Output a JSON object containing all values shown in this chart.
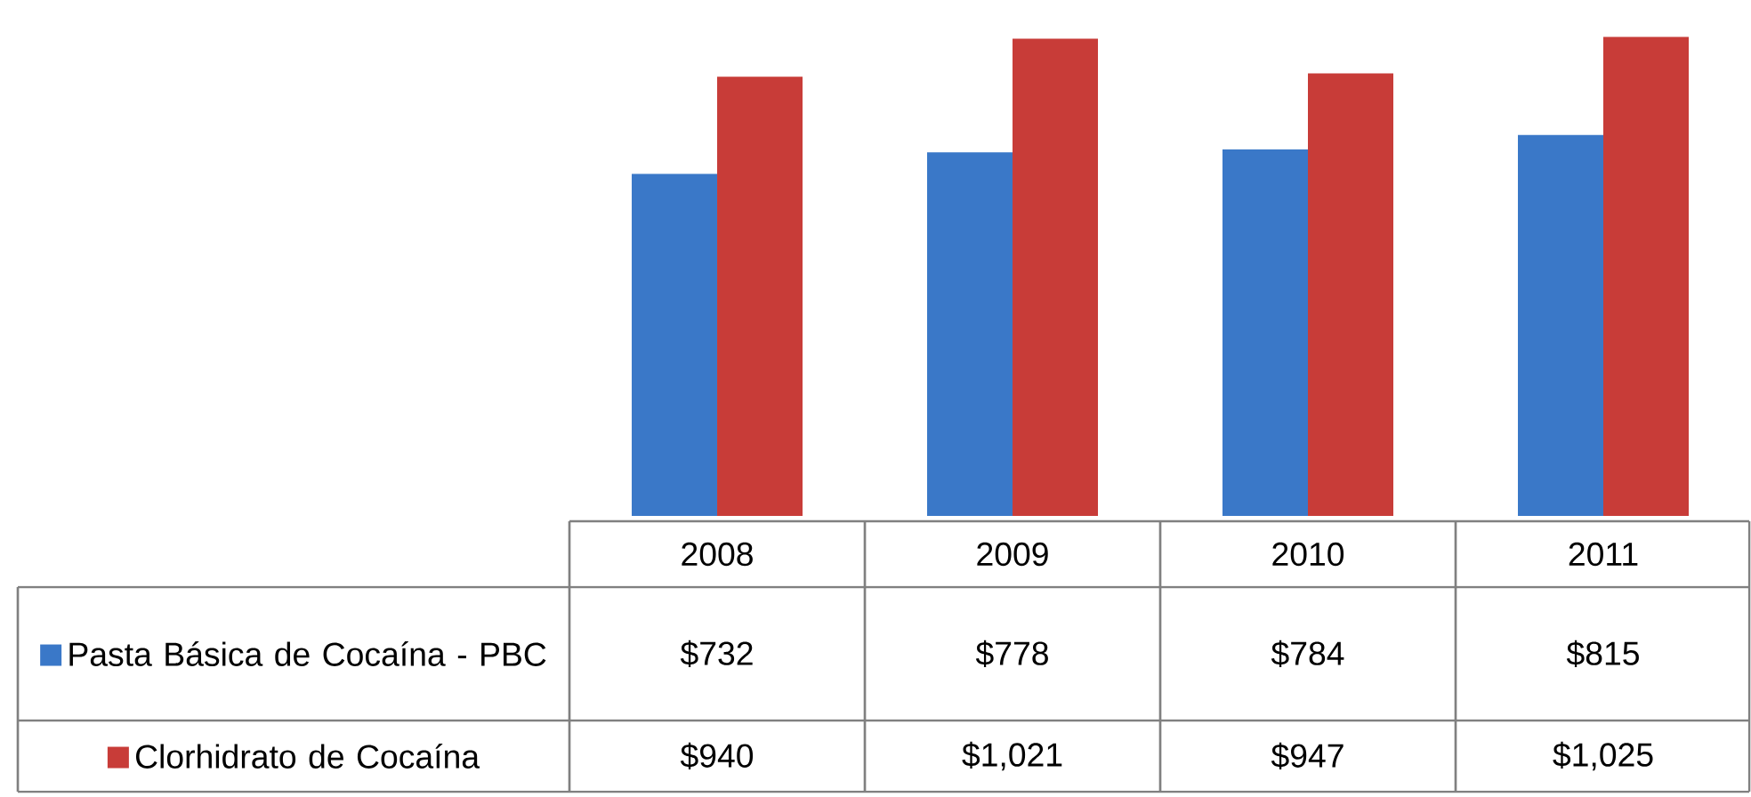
{
  "chart_data": {
    "type": "bar",
    "categories": [
      "2008",
      "2009",
      "2010",
      "2011"
    ],
    "series": [
      {
        "name": "Pasta Básica de Cocaína - PBC",
        "color": "#3a78c8",
        "values": [
          732,
          778,
          784,
          815
        ],
        "value_labels": [
          "$732",
          "$778",
          "$784",
          "$815"
        ]
      },
      {
        "name": "Clorhidrato de Cocaína",
        "color": "#c83c38",
        "values": [
          940,
          1021,
          947,
          1025
        ],
        "value_labels": [
          "$940",
          "$1,021",
          "$947",
          "$1,025"
        ]
      }
    ],
    "legend": "left"
  }
}
